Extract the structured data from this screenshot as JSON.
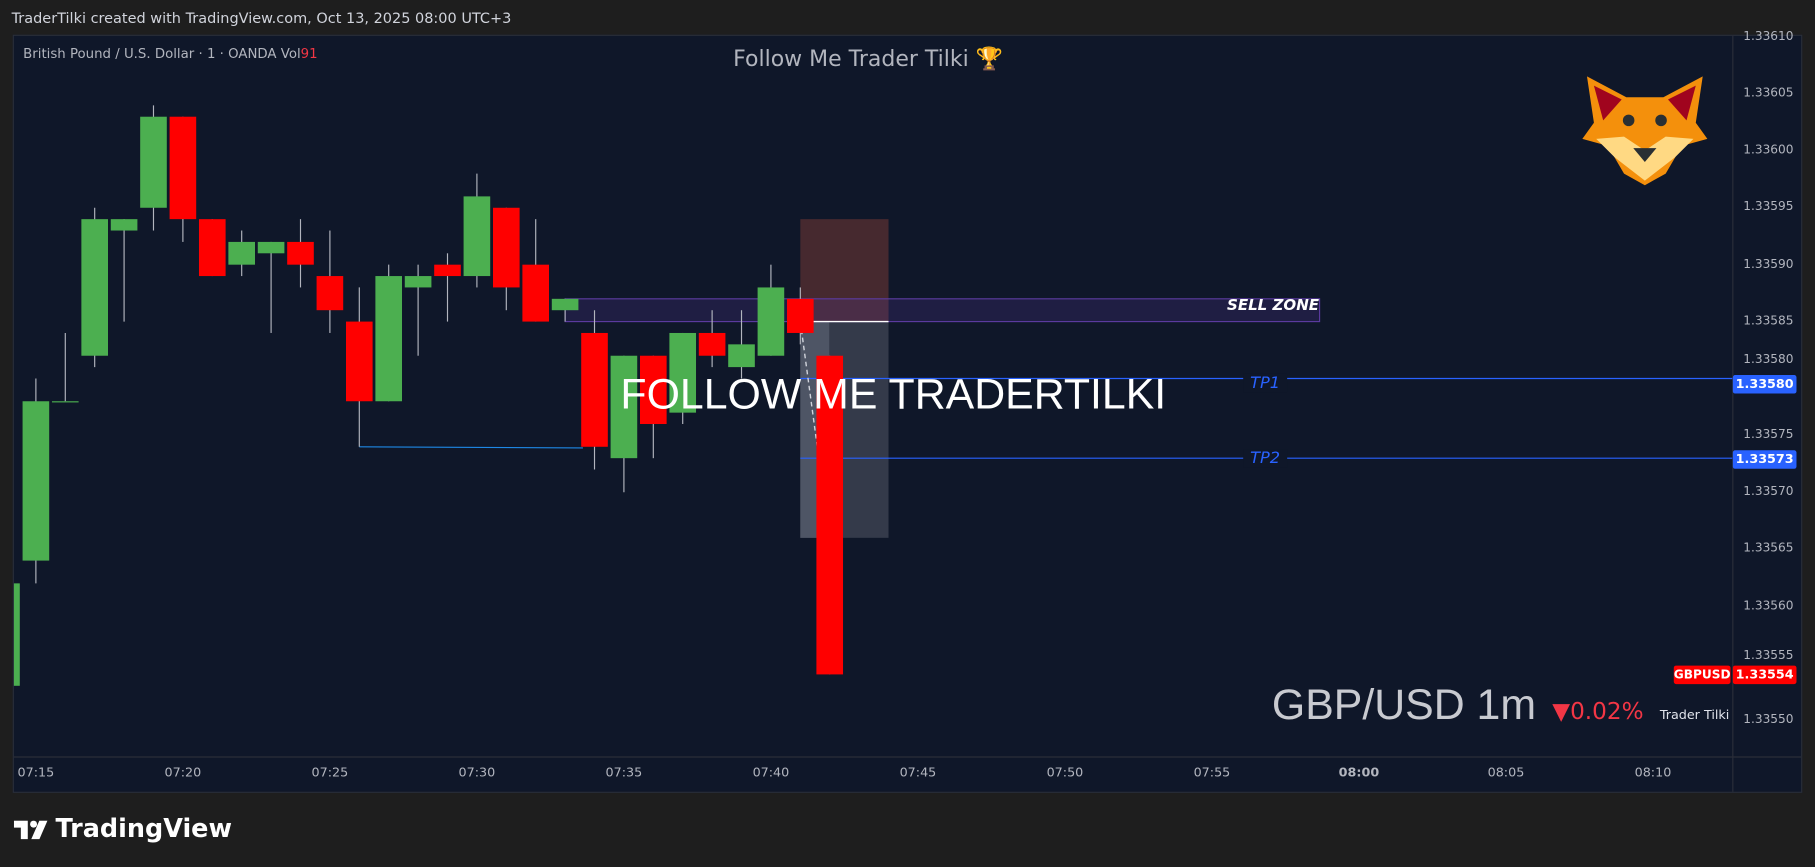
{
  "header": {
    "attribution": "TraderTilki created with TradingView.com, Oct 13, 2025 08:00 UTC+3"
  },
  "legend": {
    "symbol_line": "British Pound / U.S. Dollar · 1 · OANDA  Vol",
    "volume": "91"
  },
  "chart_title": "Follow Me Trader Tilki 🏆",
  "watermark": "FOLLOW ME TRADERTILKI",
  "symbol_overlay": {
    "label": "GBP/USD 1m",
    "change": "▼0.02%",
    "author": "Trader Tilki"
  },
  "colors": {
    "up": "#4caf50",
    "down": "#ff0000",
    "background": "#0f1729",
    "tp_line": "#2962ff",
    "sell_zone": "#5b3a9e"
  },
  "drawings": {
    "sell_zone": {
      "label": "SELL ZONE",
      "top": 1.33587,
      "bottom": 1.33585
    },
    "tp1": {
      "label": "TP1",
      "price": "1.33580"
    },
    "tp2": {
      "label": "TP2",
      "price": "1.33573"
    },
    "position": {
      "entry": 1.33585,
      "stop": 1.33594,
      "target": 1.33566
    }
  },
  "current": {
    "symbol": "GBPUSD",
    "price": "1.33554"
  },
  "price_axis": [
    "1.33610",
    "1.33605",
    "1.33600",
    "1.33595",
    "1.33590",
    "1.33585",
    "1.33580",
    "1.33575",
    "1.33570",
    "1.33565",
    "1.33560",
    "1.33555",
    "1.33550"
  ],
  "time_axis": [
    "07:15",
    "07:20",
    "07:25",
    "07:30",
    "07:35",
    "07:40",
    "07:45",
    "07:50",
    "07:55",
    "08:00",
    "08:05",
    "08:10"
  ],
  "footer": {
    "logo": "TradingView"
  },
  "chart_data": {
    "type": "candlestick",
    "ylim": [
      1.33548,
      1.33611
    ],
    "candles": [
      {
        "t": "07:14",
        "o": 1.33553,
        "h": 1.33562,
        "l": 1.33553,
        "c": 1.33562
      },
      {
        "t": "07:15",
        "o": 1.33564,
        "h": 1.3358,
        "l": 1.33562,
        "c": 1.33578
      },
      {
        "t": "07:16",
        "o": 1.33578,
        "h": 1.33584,
        "l": 1.33578,
        "c": 1.33578
      },
      {
        "t": "07:17",
        "o": 1.33582,
        "h": 1.33595,
        "l": 1.33581,
        "c": 1.33594
      },
      {
        "t": "07:18",
        "o": 1.33593,
        "h": 1.33594,
        "l": 1.33585,
        "c": 1.33594
      },
      {
        "t": "07:19",
        "o": 1.33595,
        "h": 1.33604,
        "l": 1.33593,
        "c": 1.33603
      },
      {
        "t": "07:20",
        "o": 1.33603,
        "h": 1.33603,
        "l": 1.33592,
        "c": 1.33594
      },
      {
        "t": "07:21",
        "o": 1.33594,
        "h": 1.33594,
        "l": 1.33589,
        "c": 1.33589
      },
      {
        "t": "07:22",
        "o": 1.3359,
        "h": 1.33593,
        "l": 1.33589,
        "c": 1.33592
      },
      {
        "t": "07:23",
        "o": 1.33591,
        "h": 1.33592,
        "l": 1.33584,
        "c": 1.33592
      },
      {
        "t": "07:24",
        "o": 1.33592,
        "h": 1.33594,
        "l": 1.33588,
        "c": 1.3359
      },
      {
        "t": "07:25",
        "o": 1.33589,
        "h": 1.33593,
        "l": 1.33584,
        "c": 1.33586
      },
      {
        "t": "07:26",
        "o": 1.33585,
        "h": 1.33588,
        "l": 1.33574,
        "c": 1.33578
      },
      {
        "t": "07:27",
        "o": 1.33578,
        "h": 1.3359,
        "l": 1.33578,
        "c": 1.33589
      },
      {
        "t": "07:28",
        "o": 1.33588,
        "h": 1.3359,
        "l": 1.33582,
        "c": 1.33589
      },
      {
        "t": "07:29",
        "o": 1.3359,
        "h": 1.33591,
        "l": 1.33585,
        "c": 1.33589
      },
      {
        "t": "07:30",
        "o": 1.33589,
        "h": 1.33598,
        "l": 1.33588,
        "c": 1.33596
      },
      {
        "t": "07:31",
        "o": 1.33595,
        "h": 1.33595,
        "l": 1.33586,
        "c": 1.33588
      },
      {
        "t": "07:32",
        "o": 1.3359,
        "h": 1.33594,
        "l": 1.33585,
        "c": 1.33585
      },
      {
        "t": "07:33",
        "o": 1.33586,
        "h": 1.33587,
        "l": 1.33585,
        "c": 1.33587
      },
      {
        "t": "07:34",
        "o": 1.33584,
        "h": 1.33586,
        "l": 1.33572,
        "c": 1.33574
      },
      {
        "t": "07:35",
        "o": 1.33573,
        "h": 1.33582,
        "l": 1.3357,
        "c": 1.33582
      },
      {
        "t": "07:36",
        "o": 1.33582,
        "h": 1.33582,
        "l": 1.33573,
        "c": 1.33576
      },
      {
        "t": "07:37",
        "o": 1.33577,
        "h": 1.33584,
        "l": 1.33576,
        "c": 1.33584
      },
      {
        "t": "07:38",
        "o": 1.33584,
        "h": 1.33586,
        "l": 1.33581,
        "c": 1.33582
      },
      {
        "t": "07:39",
        "o": 1.33581,
        "h": 1.33586,
        "l": 1.3358,
        "c": 1.33583
      },
      {
        "t": "07:40",
        "o": 1.33582,
        "h": 1.3359,
        "l": 1.33582,
        "c": 1.33588
      },
      {
        "t": "07:41",
        "o": 1.33587,
        "h": 1.33588,
        "l": 1.33583,
        "c": 1.33584
      },
      {
        "t": "07:42",
        "o": 1.33582,
        "h": 1.33582,
        "l": 1.33554,
        "c": 1.33554
      }
    ],
    "trendline": {
      "from": {
        "t": "07:26",
        "price": 1.33574
      },
      "to": {
        "t": "07:34",
        "price": 1.33574
      }
    }
  }
}
